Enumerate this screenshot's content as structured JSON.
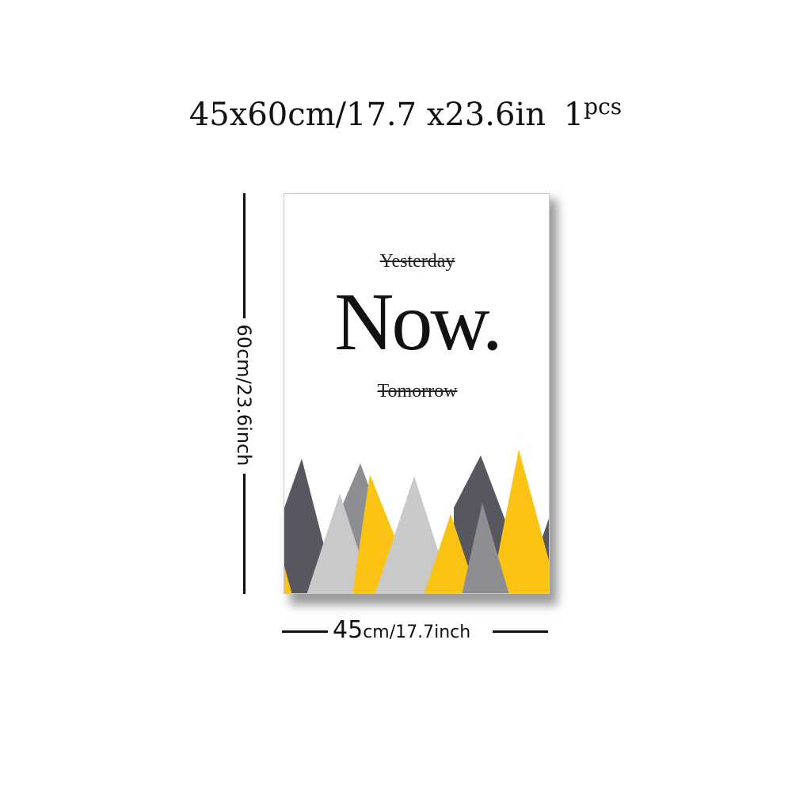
{
  "header": {
    "size_text": "45x60cm/17.7 x23.6in",
    "qty_number": "1",
    "qty_unit": "pcs"
  },
  "poster": {
    "line_top": "Yesterday",
    "headline": "Now.",
    "line_bottom": "Tomorrow"
  },
  "dimensions": {
    "height_label": "60cm/23.6inch",
    "width_number": "45",
    "width_rest": "cm/17.7inch"
  },
  "colors": {
    "dark_gray": "#57575f",
    "mid_gray": "#8e8e92",
    "light_gray": "#c9c9c9",
    "yellow": "#fbc314"
  }
}
